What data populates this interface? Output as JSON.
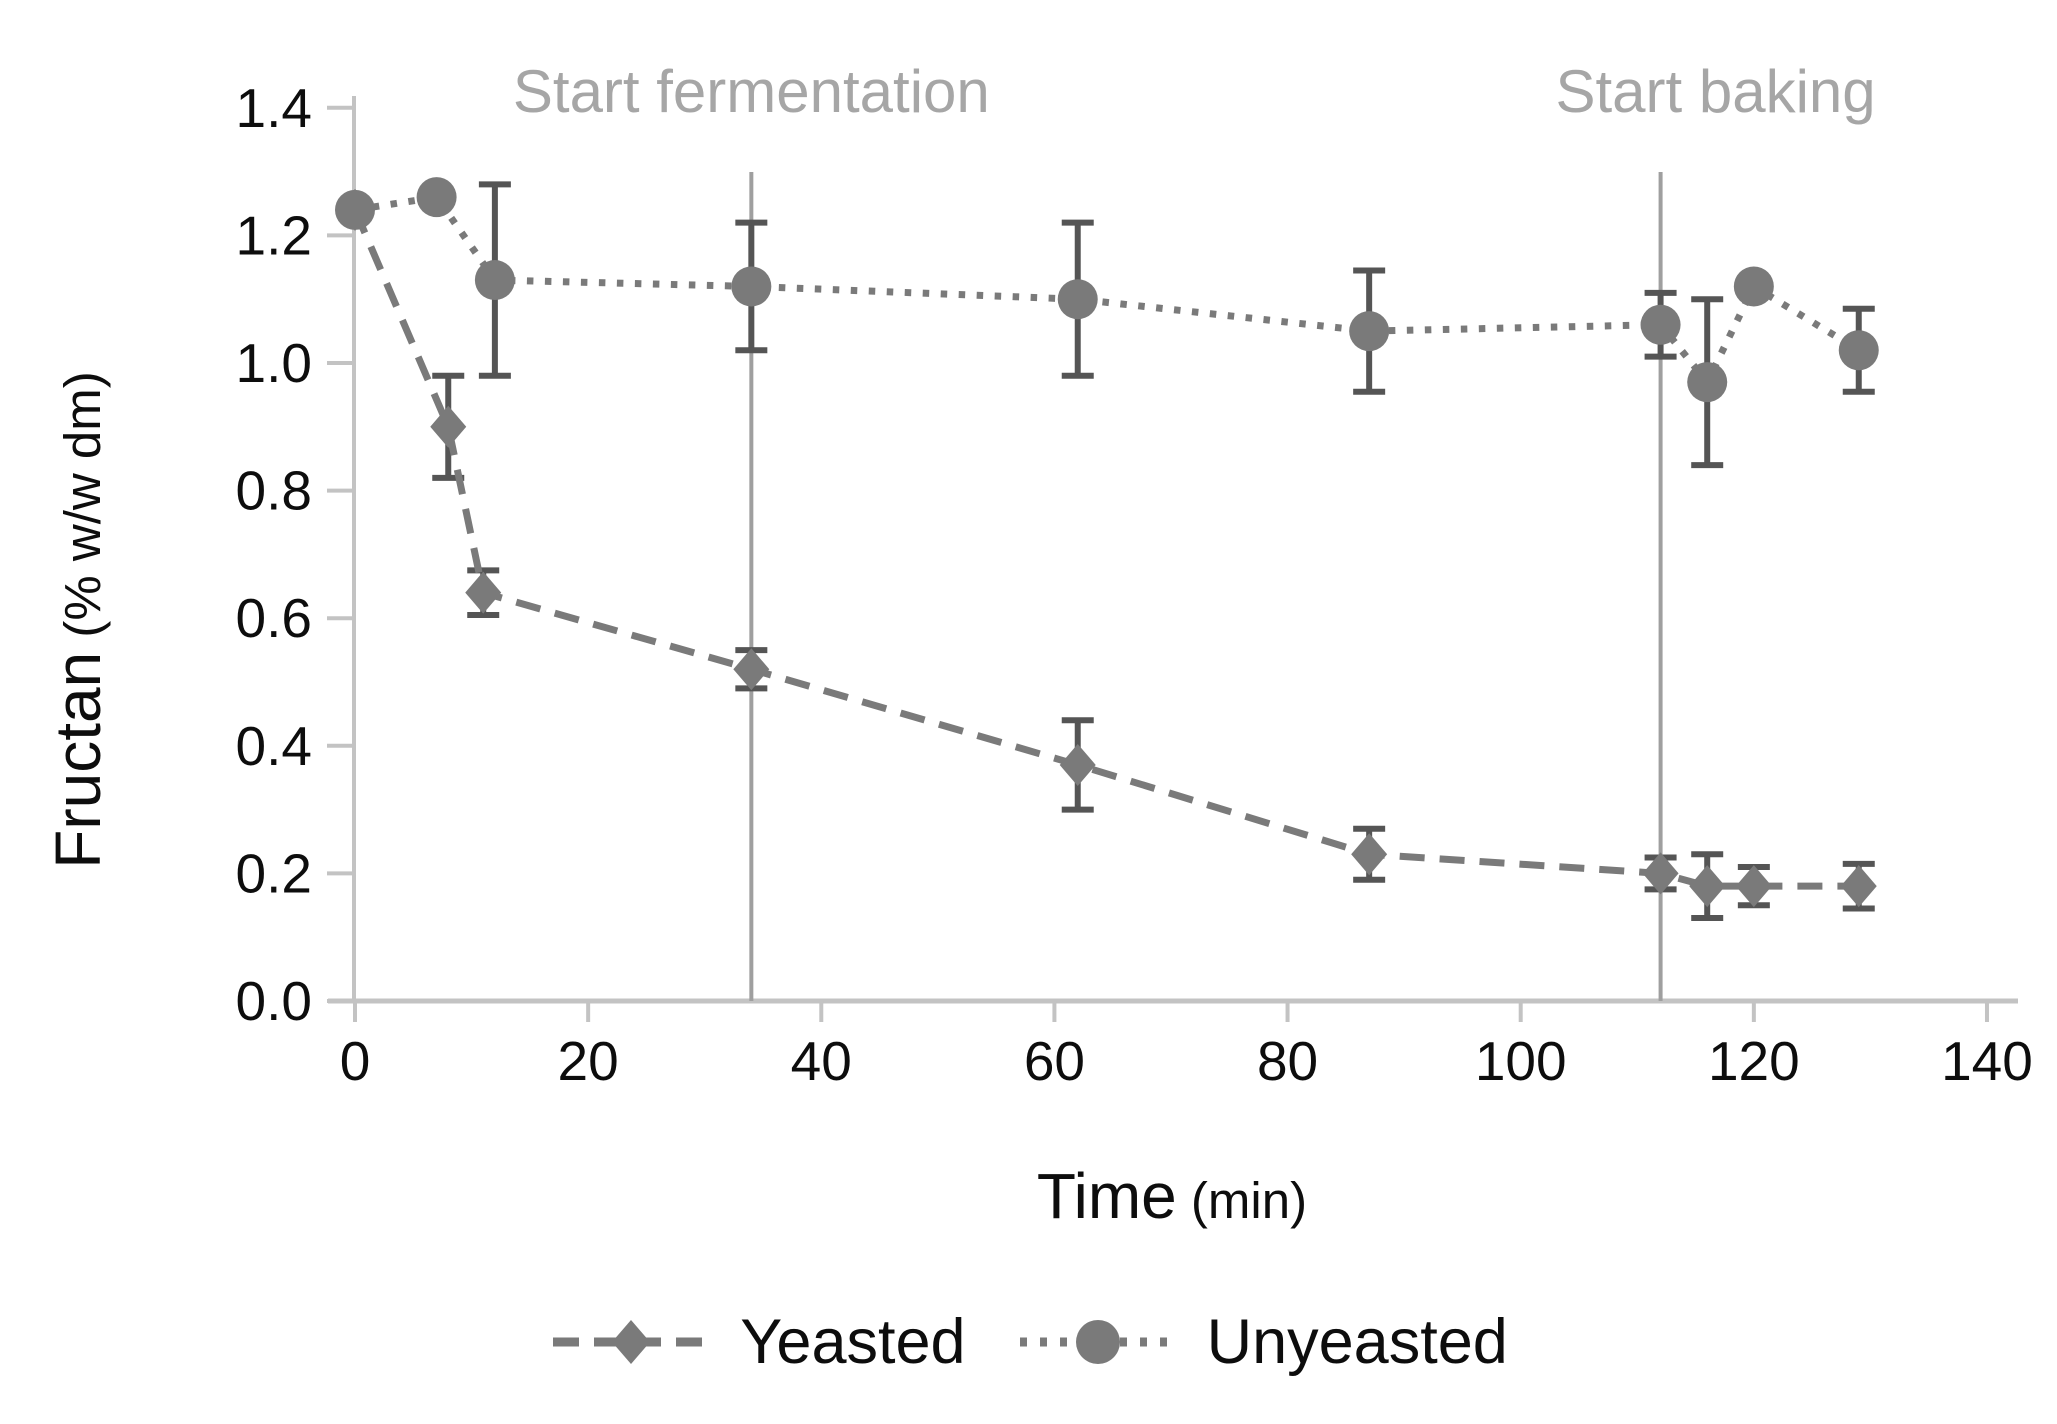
{
  "figure": {
    "background": "#ffffff"
  },
  "axis_titles": {
    "y_main": "Fructan",
    "y_unit": " (% w/w dm)",
    "x_main": "Time",
    "x_unit": " (min)"
  },
  "colors": {
    "series_gray": "#7a7a7a",
    "error_bar": "#555555",
    "axis_line": "#c3c3c3",
    "tick_text": "#0d0d0d",
    "annotation_line": "#9f9f9f",
    "annotation_text": "#a6a6a6"
  },
  "chart_data": {
    "type": "line",
    "title": "",
    "xlabel": "Time (min)",
    "ylabel": "Fructan (% w/w dm)",
    "xlim": [
      0,
      140
    ],
    "ylim": [
      0.0,
      1.4
    ],
    "grid": false,
    "legend_position": "bottom",
    "x_ticks": [
      0,
      20,
      40,
      60,
      80,
      100,
      120,
      140
    ],
    "x_tick_labels": [
      "0",
      "20",
      "40",
      "60",
      "80",
      "100",
      "120",
      "140"
    ],
    "y_ticks": [
      0.0,
      0.2,
      0.4,
      0.6,
      0.8,
      1.0,
      1.2,
      1.4
    ],
    "y_tick_labels": [
      "0.0",
      "0.2",
      "0.4",
      "0.6",
      "0.8",
      "1.0",
      "1.2",
      "1.4"
    ],
    "annotations": [
      {
        "label": "Start fermentation",
        "x": 34,
        "label_dx": 0
      },
      {
        "label": "Start baking",
        "x": 112,
        "label_dx": 55
      }
    ],
    "series": [
      {
        "name": "Yeasted",
        "marker": "diamond",
        "line_style": "dashed",
        "x": [
          0,
          8,
          11,
          34,
          62,
          87,
          112,
          116,
          120,
          129
        ],
        "y": [
          1.24,
          0.9,
          0.64,
          0.52,
          0.37,
          0.23,
          0.2,
          0.18,
          0.18,
          0.18
        ],
        "yerr": [
          0,
          0.08,
          0.035,
          0.03,
          0.07,
          0.04,
          0.025,
          0.05,
          0.03,
          0.035
        ]
      },
      {
        "name": "Unyeasted",
        "marker": "circle",
        "line_style": "dotted",
        "x": [
          0,
          7,
          12,
          34,
          62,
          87,
          112,
          116,
          120,
          129
        ],
        "y": [
          1.24,
          1.26,
          1.13,
          1.12,
          1.1,
          1.05,
          1.06,
          0.97,
          1.12,
          1.02
        ],
        "yerr": [
          0,
          0,
          0.15,
          0.1,
          0.12,
          0.095,
          0.05,
          0.13,
          0,
          0.065
        ]
      }
    ]
  }
}
